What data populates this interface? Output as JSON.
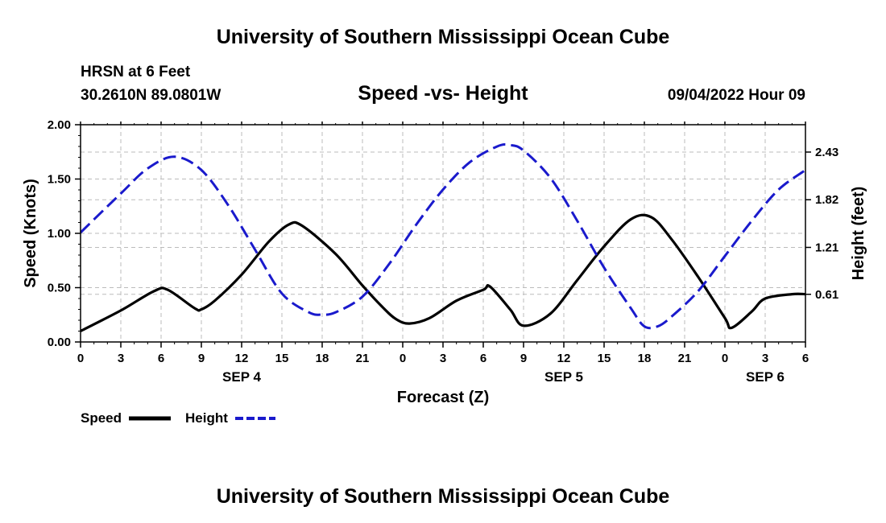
{
  "header": {
    "title": "University of Southern Mississippi Ocean Cube",
    "station": "HRSN at 6 Feet",
    "coords": "30.2610N  89.0801W",
    "date": "09/04/2022 Hour 09",
    "footer_title": "University of Southern Mississippi Ocean Cube"
  },
  "colors": {
    "speed": "#000000",
    "height": "#1a1acc",
    "grid": "#bbbbbb"
  },
  "chart_data": {
    "type": "line",
    "title": "Speed -vs- Height",
    "xlabel": "Forecast (Z)",
    "ylabel": "Speed (Knots)",
    "ylabel_right": "Height (feet)",
    "x_range": [
      0,
      54
    ],
    "x_ticks": [
      0,
      3,
      6,
      9,
      12,
      15,
      18,
      21,
      24,
      27,
      30,
      33,
      36,
      39,
      42,
      45,
      48,
      51,
      54
    ],
    "x_tick_labels": [
      "0",
      "3",
      "6",
      "9",
      "12",
      "15",
      "18",
      "21",
      "0",
      "3",
      "6",
      "9",
      "12",
      "15",
      "18",
      "21",
      "0",
      "3",
      "6"
    ],
    "date_labels": [
      {
        "label": "SEP 4",
        "x": 12
      },
      {
        "label": "SEP 5",
        "x": 36
      },
      {
        "label": "SEP 6",
        "x": 51
      }
    ],
    "y_left": {
      "range": [
        0,
        2
      ],
      "ticks": [
        0,
        0.5,
        1,
        1.5,
        2
      ],
      "tick_labels": [
        "0.00",
        "0.50",
        "1.00",
        "1.50",
        "2.00"
      ]
    },
    "y_right": {
      "range": [
        0,
        2.78
      ],
      "ticks": [
        0.61,
        1.21,
        1.82,
        2.43
      ],
      "tick_labels": [
        "0.61",
        "1.21",
        "1.82",
        "2.43"
      ]
    },
    "series": [
      {
        "name": "Speed",
        "axis": "left",
        "style": "solid",
        "x": [
          0,
          3,
          5.5,
          6.5,
          8.5,
          9,
          10,
          12,
          14,
          15.5,
          16.5,
          19,
          21,
          22.5,
          23.5,
          24.5,
          26,
          28,
          30,
          30.5,
          32,
          33,
          35,
          37,
          39,
          41,
          42.5,
          44,
          46,
          48,
          48.5,
          50,
          51,
          53,
          54
        ],
        "values": [
          0.1,
          0.29,
          0.47,
          0.48,
          0.31,
          0.3,
          0.38,
          0.62,
          0.92,
          1.08,
          1.07,
          0.81,
          0.52,
          0.32,
          0.21,
          0.17,
          0.22,
          0.38,
          0.48,
          0.51,
          0.3,
          0.15,
          0.26,
          0.57,
          0.88,
          1.13,
          1.15,
          0.95,
          0.6,
          0.22,
          0.13,
          0.28,
          0.4,
          0.44,
          0.44
        ]
      },
      {
        "name": "Height",
        "axis": "right",
        "style": "dashed",
        "x": [
          0,
          3,
          5,
          7,
          9,
          11,
          13,
          15,
          17,
          18,
          19,
          21,
          23,
          25,
          27,
          29,
          31,
          32,
          33,
          35,
          37,
          39,
          41,
          42,
          43,
          44,
          46,
          48,
          50,
          52,
          54
        ],
        "values": [
          1.4,
          1.9,
          2.22,
          2.37,
          2.2,
          1.75,
          1.18,
          0.62,
          0.38,
          0.35,
          0.38,
          0.58,
          1.0,
          1.5,
          1.95,
          2.3,
          2.5,
          2.52,
          2.45,
          2.1,
          1.55,
          0.95,
          0.43,
          0.2,
          0.2,
          0.32,
          0.65,
          1.1,
          1.55,
          1.95,
          2.2
        ]
      }
    ],
    "legend": [
      {
        "label": "Speed",
        "series": "Speed"
      },
      {
        "label": "Height",
        "series": "Height"
      }
    ]
  }
}
